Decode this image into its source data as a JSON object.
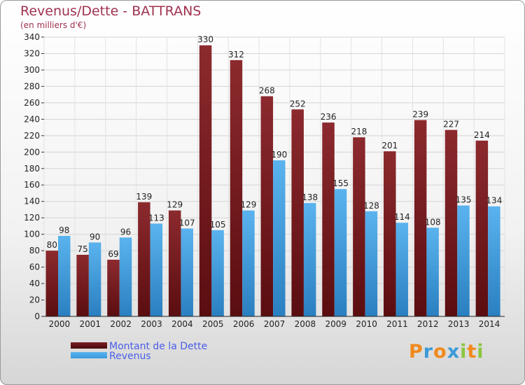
{
  "header": {
    "title": "Revenus/Dette - BATTRANS",
    "subtitle": "(en milliers d'€)"
  },
  "legend": {
    "items": [
      {
        "label": "Montant de la Dette",
        "color": "#7a1e22"
      },
      {
        "label": "Revenus",
        "color": "#3b9bdc"
      }
    ]
  },
  "logo": {
    "text": "Proxiti",
    "letters": [
      {
        "ch": "P",
        "color": "#f08a1d"
      },
      {
        "ch": "r",
        "color": "#3a9ad9"
      },
      {
        "ch": "o",
        "color": "#f08a1d"
      },
      {
        "ch": "x",
        "color": "#3a9ad9"
      },
      {
        "ch": "i",
        "color": "#8cc63e"
      },
      {
        "ch": "t",
        "color": "#f08a1d"
      },
      {
        "ch": "i",
        "color": "#8cc63e"
      }
    ]
  },
  "chart_data": {
    "type": "bar",
    "title": "Revenus/Dette - BATTRANS",
    "subtitle": "(en milliers d'€)",
    "categories": [
      "2000",
      "2001",
      "2002",
      "2003",
      "2004",
      "2005",
      "2006",
      "2007",
      "2008",
      "2009",
      "2010",
      "2011",
      "2012",
      "2013",
      "2014"
    ],
    "series": [
      {
        "name": "Montant de la Dette",
        "color": "#7a1e22",
        "values": [
          80,
          75,
          69,
          139,
          129,
          330,
          312,
          268,
          252,
          236,
          218,
          201,
          239,
          227,
          214
        ]
      },
      {
        "name": "Revenus",
        "color": "#3b9bdc",
        "values": [
          98,
          90,
          96,
          113,
          107,
          105,
          129,
          190,
          138,
          155,
          128,
          114,
          108,
          135,
          134
        ]
      }
    ],
    "ylim": [
      0,
      340
    ],
    "ytick_step": 20,
    "grid": true,
    "legend_position": "bottom-left",
    "data_labels": true
  }
}
